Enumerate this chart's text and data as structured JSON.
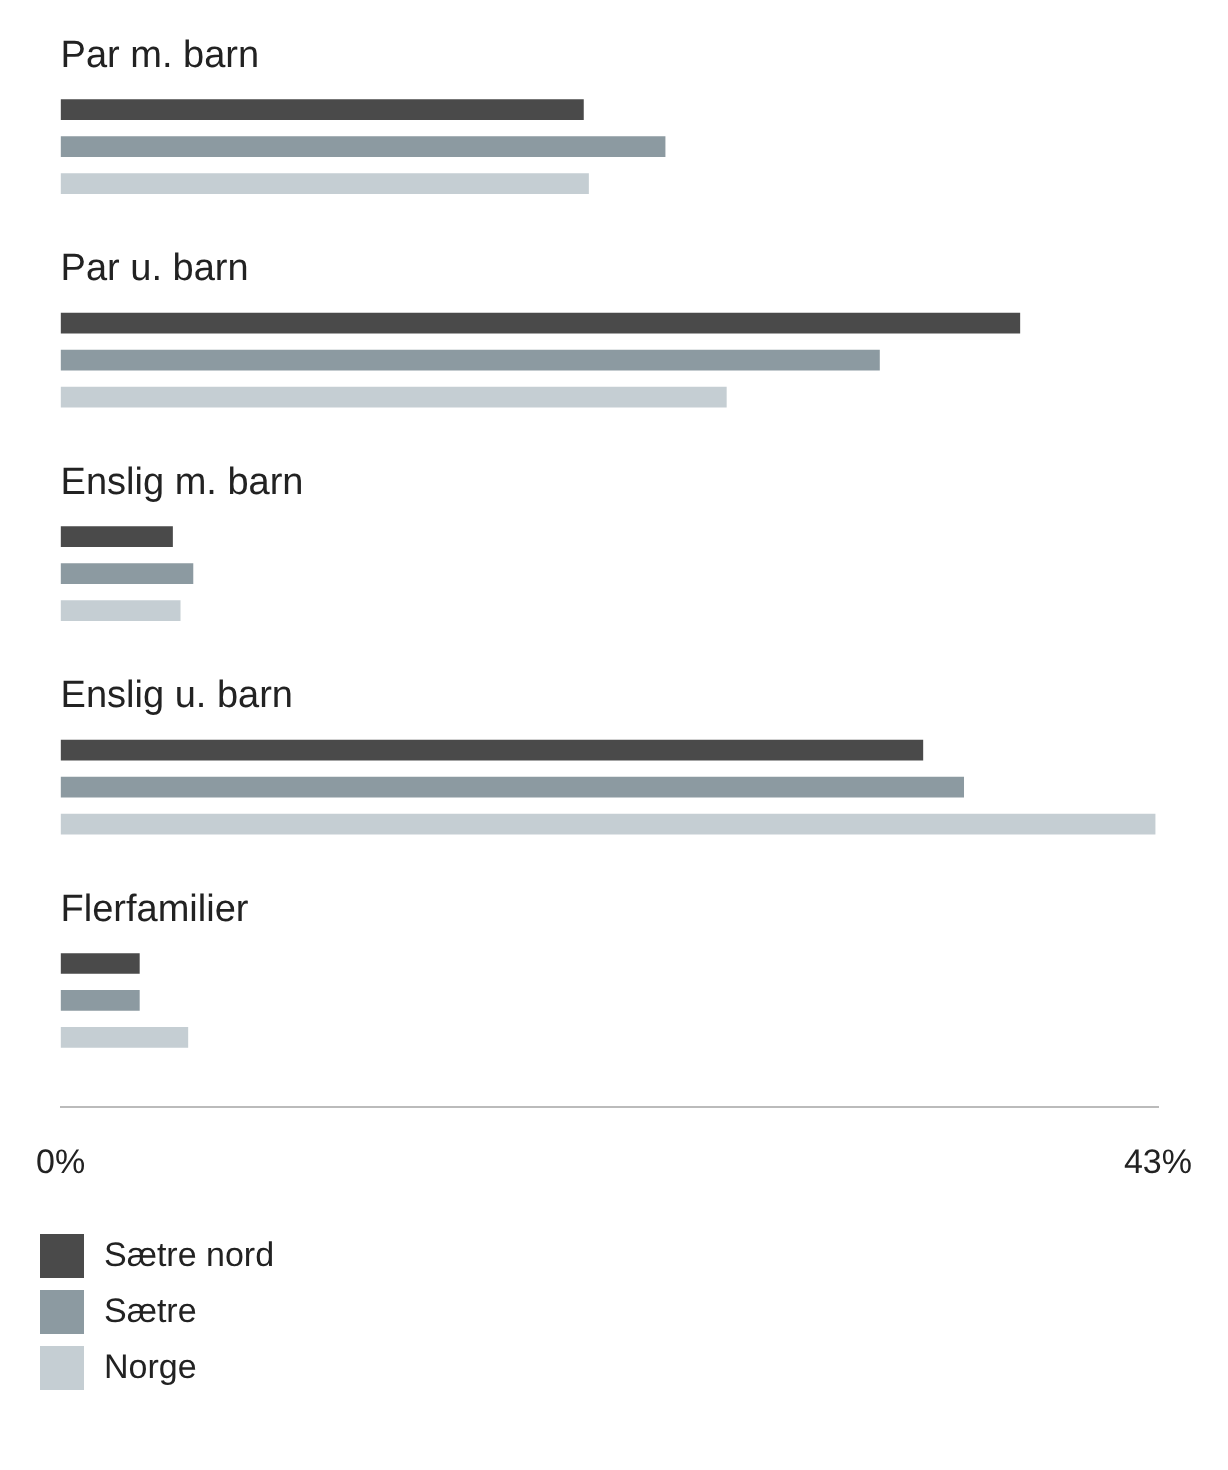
{
  "chart_data": {
    "type": "bar",
    "orientation": "horizontal",
    "categories": [
      "Par m. barn",
      "Par u. barn",
      "Enslig m. barn",
      "Enslig u. barn",
      "Flerfamilier"
    ],
    "series": [
      {
        "name": "Sætre nord",
        "color": "#4a4a4a",
        "values": [
          20.5,
          37.6,
          4.4,
          33.8,
          3.1
        ]
      },
      {
        "name": "Sætre",
        "color": "#8c9aa1",
        "values": [
          23.7,
          32.1,
          5.2,
          35.4,
          3.1
        ]
      },
      {
        "name": "Norge",
        "color": "#c5ced3",
        "values": [
          20.7,
          26.1,
          4.7,
          42.9,
          5.0
        ]
      }
    ],
    "xlim": [
      0,
      43
    ],
    "xticks": [
      {
        "value": 0,
        "label": "0%"
      },
      {
        "value": 43,
        "label": "43%"
      }
    ],
    "grid": false,
    "legend": "bottom"
  }
}
